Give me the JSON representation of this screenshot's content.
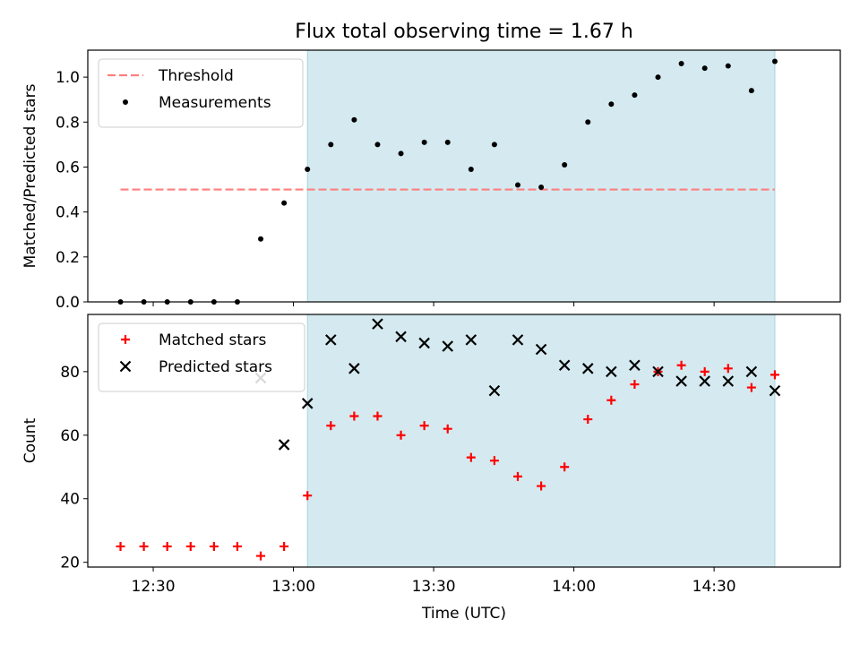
{
  "title": "Flux total observing time = 1.67 h",
  "chart_data": [
    {
      "type": "scatter",
      "title": "Flux total observing time = 1.67 h",
      "xlabel": "",
      "ylabel": "Matched/Predicted stars",
      "ylim": [
        0.0,
        1.12
      ],
      "yticks": [
        0.0,
        0.2,
        0.4,
        0.6,
        0.8,
        1.0
      ],
      "ytick_labels": [
        "0.0",
        "0.2",
        "0.4",
        "0.6",
        "0.8",
        "1.0"
      ],
      "xlim": [
        "12:16",
        "14:57"
      ],
      "shaded_interval": [
        "13:03",
        "14:43"
      ],
      "shade_color": "#d4eaf0",
      "legend_position": "upper-left",
      "threshold": {
        "name": "Threshold",
        "y": 0.5,
        "x": [
          "12:23",
          "14:43"
        ],
        "color": "#ff7f7f",
        "style": "dashed"
      },
      "series": [
        {
          "name": "Measurements",
          "marker": "dot",
          "color": "#000000",
          "x": [
            "12:23",
            "12:28",
            "12:33",
            "12:38",
            "12:43",
            "12:48",
            "12:53",
            "12:58",
            "13:03",
            "13:08",
            "13:13",
            "13:18",
            "13:23",
            "13:28",
            "13:33",
            "13:38",
            "13:43",
            "13:48",
            "13:53",
            "13:58",
            "14:03",
            "14:08",
            "14:13",
            "14:18",
            "14:23",
            "14:28",
            "14:33",
            "14:38",
            "14:43"
          ],
          "values": [
            0.0,
            0.0,
            0.0,
            0.0,
            0.0,
            0.0,
            0.28,
            0.44,
            0.59,
            0.7,
            0.81,
            0.7,
            0.66,
            0.71,
            0.71,
            0.59,
            0.7,
            0.52,
            0.51,
            0.61,
            0.8,
            0.88,
            0.92,
            1.0,
            1.06,
            1.04,
            1.05,
            0.94,
            1.07
          ]
        }
      ]
    },
    {
      "type": "scatter",
      "xlabel": "Time (UTC)",
      "ylabel": "Count",
      "ylim": [
        18.5,
        98
      ],
      "yticks": [
        20,
        40,
        60,
        80
      ],
      "ytick_labels": [
        "20",
        "40",
        "60",
        "80"
      ],
      "xlim": [
        "12:16",
        "14:57"
      ],
      "xticks": [
        "12:30",
        "13:00",
        "13:30",
        "14:00",
        "14:30"
      ],
      "xtick_labels": [
        "12:30",
        "13:00",
        "13:30",
        "14:00",
        "14:30"
      ],
      "shaded_interval": [
        "13:03",
        "14:43"
      ],
      "shade_color": "#d4eaf0",
      "legend_position": "upper-left",
      "series": [
        {
          "name": "Matched stars",
          "marker": "plus",
          "color": "#ff0000",
          "x": [
            "12:23",
            "12:28",
            "12:33",
            "12:38",
            "12:43",
            "12:48",
            "12:53",
            "12:58",
            "13:03",
            "13:08",
            "13:13",
            "13:18",
            "13:23",
            "13:28",
            "13:33",
            "13:38",
            "13:43",
            "13:48",
            "13:53",
            "13:58",
            "14:03",
            "14:08",
            "14:13",
            "14:18",
            "14:23",
            "14:28",
            "14:33",
            "14:38",
            "14:43"
          ],
          "values": [
            25,
            25,
            25,
            25,
            25,
            25,
            22,
            25,
            41,
            63,
            66,
            66,
            60,
            63,
            62,
            53,
            52,
            47,
            44,
            50,
            65,
            71,
            76,
            80,
            82,
            80,
            81,
            75,
            79
          ]
        },
        {
          "name": "Predicted stars",
          "marker": "x",
          "color": "#000000",
          "x": [
            "12:53",
            "12:58",
            "13:03",
            "13:08",
            "13:13",
            "13:18",
            "13:23",
            "13:28",
            "13:33",
            "13:38",
            "13:43",
            "13:48",
            "13:53",
            "13:58",
            "14:03",
            "14:08",
            "14:13",
            "14:18",
            "14:23",
            "14:28",
            "14:33",
            "14:38",
            "14:43"
          ],
          "values": [
            78,
            57,
            70,
            90,
            81,
            95,
            91,
            89,
            88,
            90,
            74,
            90,
            87,
            82,
            81,
            80,
            82,
            80,
            77,
            77,
            77,
            80,
            74
          ]
        }
      ]
    }
  ]
}
